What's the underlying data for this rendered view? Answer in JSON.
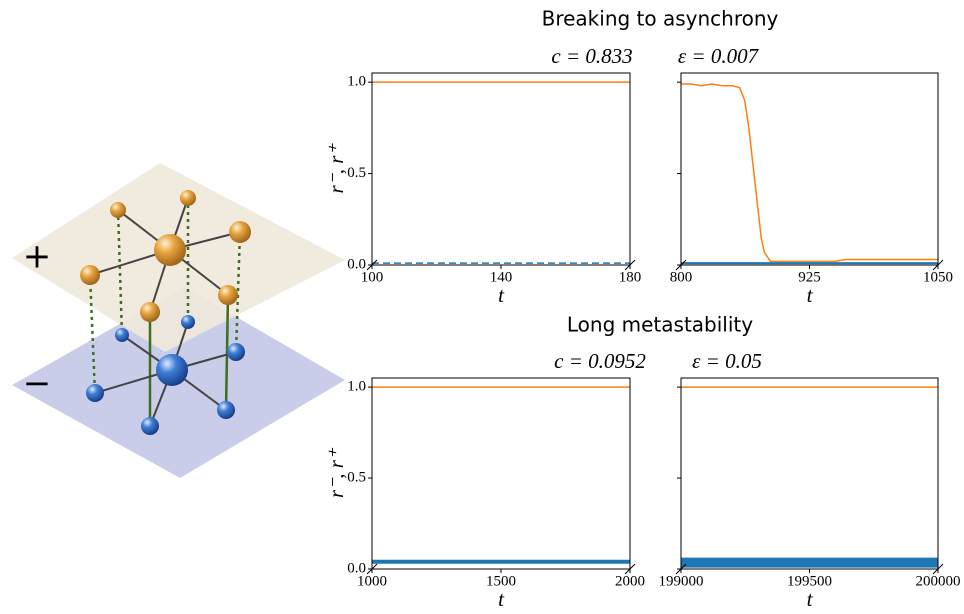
{
  "diagram": {
    "plus_label": "+",
    "minus_label": "−"
  },
  "sections": [
    {
      "title": "Breaking to asynchrony",
      "c_label": "c = 0.833",
      "eps_label": "ε = 0.007"
    },
    {
      "title": "Long metastability",
      "c_label": "c = 0.0952",
      "eps_label": "ε = 0.05"
    }
  ],
  "chart_data": [
    {
      "type": "line",
      "xlabel": "t",
      "ylabel": "r⁻, r⁺",
      "x": [
        100,
        180
      ],
      "series": [
        {
          "color": "#ff7f0e",
          "values": [
            1.0,
            1.0
          ],
          "linewidth": 1.5
        },
        {
          "color": "#1f77b4",
          "values": [
            0.01,
            0.01
          ],
          "linewidth": 1.5,
          "dashed": true
        }
      ],
      "xlim": [
        100,
        180
      ],
      "ylim": [
        0,
        1.05
      ],
      "xticks": [
        100,
        140,
        180
      ],
      "yticks": [
        {
          "value": 0,
          "label": "0.0"
        },
        {
          "value": 0.5,
          "label": "0.5"
        },
        {
          "value": 1,
          "label": "1.0"
        }
      ],
      "ytick_labels": true
    },
    {
      "type": "line",
      "xlabel": "t",
      "x": [
        800,
        810,
        820,
        830,
        840,
        850,
        857,
        862,
        866,
        869,
        872,
        875,
        878,
        881,
        887,
        900,
        925,
        950,
        960,
        975,
        1000,
        1025,
        1050
      ],
      "series": [
        {
          "color": "#ff7f0e",
          "values": [
            0.99,
            0.99,
            0.98,
            0.99,
            0.98,
            0.98,
            0.97,
            0.9,
            0.75,
            0.6,
            0.45,
            0.3,
            0.15,
            0.07,
            0.02,
            0.02,
            0.02,
            0.02,
            0.03,
            0.03,
            0.03,
            0.03,
            0.03
          ],
          "linewidth": 1.5
        },
        {
          "color": "#1f77b4",
          "values": [
            0.01,
            0.01,
            0.01,
            0.01,
            0.01,
            0.01,
            0.01,
            0.01,
            0.01,
            0.01,
            0.01,
            0.01,
            0.01,
            0.01,
            0.01,
            0.01,
            0.01,
            0.01,
            0.01,
            0.01,
            0.01,
            0.01,
            0.01
          ],
          "linewidth": 2
        }
      ],
      "xlim": [
        800,
        1050
      ],
      "ylim": [
        0,
        1.05
      ],
      "xticks": [
        800,
        925,
        1050
      ],
      "yticks": [
        0,
        0.5,
        1
      ],
      "ytick_labels": false
    },
    {
      "type": "line",
      "xlabel": "t",
      "ylabel": "r⁻, r⁺",
      "x": [
        1000,
        2000
      ],
      "series": [
        {
          "color": "#ff7f0e",
          "values": [
            1.0,
            1.0
          ],
          "linewidth": 1.5
        },
        {
          "color": "#1f77b4",
          "values": [
            0.04,
            0.04
          ],
          "linewidth": 4
        }
      ],
      "xlim": [
        1000,
        2000
      ],
      "ylim": [
        0,
        1.05
      ],
      "xticks": [
        1000,
        1500,
        2000
      ],
      "yticks": [
        {
          "value": 0,
          "label": "0.0"
        },
        {
          "value": 0.5,
          "label": "0.5"
        },
        {
          "value": 1,
          "label": "1.0"
        }
      ],
      "ytick_labels": true
    },
    {
      "type": "line",
      "xlabel": "t",
      "x": [
        199000,
        200000
      ],
      "series": [
        {
          "color": "#ff7f0e",
          "values": [
            1.0,
            1.0
          ],
          "linewidth": 1.5
        },
        {
          "color": "#1f77b4",
          "values": [
            0.035,
            0.035
          ],
          "linewidth": 10
        }
      ],
      "xlim": [
        199000,
        200000
      ],
      "ylim": [
        0,
        1.05
      ],
      "xticks": [
        199000,
        199500,
        200000
      ],
      "yticks": [
        0,
        0.5,
        1
      ],
      "ytick_labels": false
    }
  ]
}
